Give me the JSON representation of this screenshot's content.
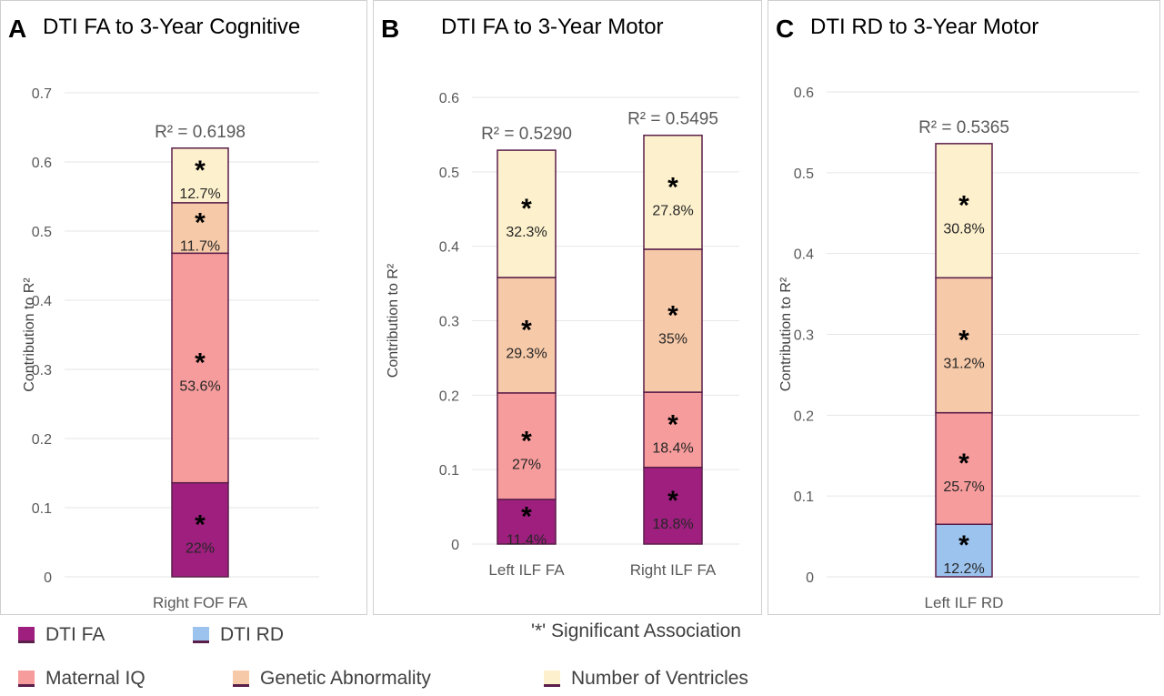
{
  "colors": {
    "dti_fa": "#9e1f7e",
    "dti_rd": "#9cc3ee",
    "maternal_iq": "#f79c9c",
    "genetic": "#f6c9a8",
    "ventricles": "#fdf0cc",
    "segment_border": "#5a1e4a",
    "grid": "#e6e6e6",
    "text": "#404040"
  },
  "chart_data": [
    {
      "type": "bar",
      "stacked": true,
      "panel_letter": "A",
      "title": "DTI FA to 3-Year Cognitive",
      "ylabel": "Contribution to R²",
      "xlabel": "",
      "ylim": [
        0,
        0.7
      ],
      "yticks": [
        "0",
        "0.1",
        "0.2",
        "0.3",
        "0.4",
        "0.5",
        "0.6",
        "0.7"
      ],
      "grid": true,
      "categories": [
        "Right FOF FA"
      ],
      "r2_labels": [
        "R² = 0.6198"
      ],
      "series": [
        {
          "key": "dti_fa",
          "values": [
            0.136
          ],
          "labels": [
            "22%"
          ],
          "significant": [
            true
          ]
        },
        {
          "key": "maternal_iq",
          "values": [
            0.332
          ],
          "labels": [
            "53.6%"
          ],
          "significant": [
            true
          ]
        },
        {
          "key": "genetic",
          "values": [
            0.073
          ],
          "labels": [
            "11.7%"
          ],
          "significant": [
            true
          ]
        },
        {
          "key": "ventricles",
          "values": [
            0.079
          ],
          "labels": [
            "12.7%"
          ],
          "significant": [
            true
          ]
        }
      ]
    },
    {
      "type": "bar",
      "stacked": true,
      "panel_letter": "B",
      "title": "DTI FA to 3-Year Motor",
      "ylabel": "Contribution to R²",
      "xlabel": "",
      "ylim": [
        0,
        0.6
      ],
      "yticks": [
        "0",
        "0.1",
        "0.2",
        "0.3",
        "0.4",
        "0.5",
        "0.6"
      ],
      "grid": true,
      "categories": [
        "Left ILF FA",
        "Right ILF FA"
      ],
      "r2_labels": [
        "R² = 0.5290",
        "R² = 0.5495"
      ],
      "series": [
        {
          "key": "dti_fa",
          "values": [
            0.06,
            0.103
          ],
          "labels": [
            "11.4%",
            "18.8%"
          ],
          "significant": [
            true,
            true
          ]
        },
        {
          "key": "maternal_iq",
          "values": [
            0.143,
            0.101
          ],
          "labels": [
            "27%",
            "18.4%"
          ],
          "significant": [
            true,
            true
          ]
        },
        {
          "key": "genetic",
          "values": [
            0.155,
            0.192
          ],
          "labels": [
            "29.3%",
            "35%"
          ],
          "significant": [
            true,
            true
          ]
        },
        {
          "key": "ventricles",
          "values": [
            0.171,
            0.153
          ],
          "labels": [
            "32.3%",
            "27.8%"
          ],
          "significant": [
            true,
            true
          ]
        }
      ]
    },
    {
      "type": "bar",
      "stacked": true,
      "panel_letter": "C",
      "title": "DTI RD to 3-Year Motor",
      "ylabel": "Contribution to R²",
      "xlabel": "",
      "ylim": [
        0,
        0.6
      ],
      "yticks": [
        "0",
        "0.1",
        "0.2",
        "0.3",
        "0.4",
        "0.5",
        "0.6"
      ],
      "grid": true,
      "categories": [
        "Left ILF RD"
      ],
      "r2_labels": [
        "R² = 0.5365"
      ],
      "series": [
        {
          "key": "dti_rd",
          "values": [
            0.065
          ],
          "labels": [
            "12.2%"
          ],
          "significant": [
            true
          ]
        },
        {
          "key": "maternal_iq",
          "values": [
            0.138
          ],
          "labels": [
            "25.7%"
          ],
          "significant": [
            true
          ]
        },
        {
          "key": "genetic",
          "values": [
            0.167
          ],
          "labels": [
            "31.2%"
          ],
          "significant": [
            true
          ]
        },
        {
          "key": "ventricles",
          "values": [
            0.166
          ],
          "labels": [
            "30.8%"
          ],
          "significant": [
            true
          ]
        }
      ]
    }
  ],
  "legend": {
    "items": [
      {
        "key": "dti_fa",
        "label": "DTI FA"
      },
      {
        "key": "dti_rd",
        "label": "DTI RD"
      },
      {
        "key": "maternal_iq",
        "label": "Maternal IQ"
      },
      {
        "key": "genetic",
        "label": "Genetic Abnormality"
      },
      {
        "key": "ventricles",
        "label": "Number of Ventricles"
      }
    ],
    "note": "'*' Significant Association",
    "significance_marker": "*"
  }
}
